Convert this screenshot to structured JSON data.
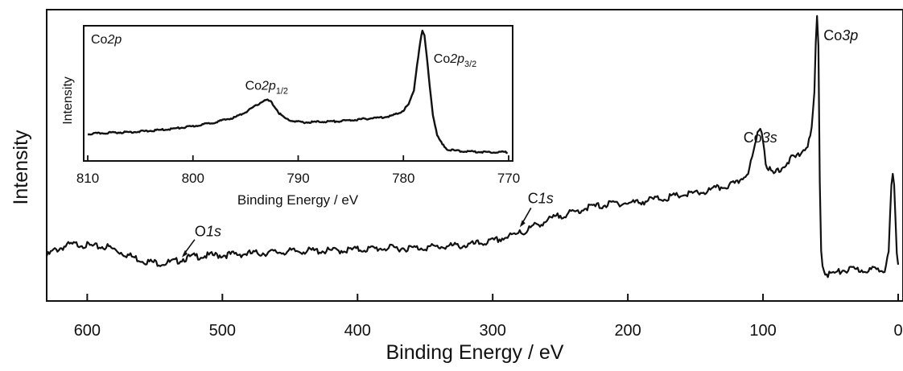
{
  "chart_data": [
    {
      "type": "line",
      "name": "",
      "xlabel": "Binding Energy / eV",
      "ylabel": "Intensity",
      "xlim": [
        630,
        0
      ],
      "ylim": [
        0,
        100
      ],
      "xticks": [
        600,
        500,
        400,
        300,
        200,
        100,
        0
      ],
      "y_tick_labels_shown": false,
      "grid": false,
      "series": [
        {
          "x": [
            630,
            625,
            615,
            605,
            595,
            585,
            575,
            565,
            555,
            545,
            535,
            530,
            520,
            500,
            480,
            460,
            440,
            420,
            400,
            380,
            360,
            340,
            320,
            300,
            290,
            282,
            280,
            278,
            270,
            260,
            250,
            240,
            230,
            220,
            210,
            200,
            190,
            180,
            170,
            160,
            150,
            140,
            130,
            120,
            115,
            110,
            106,
            104,
            102,
            100,
            98,
            96,
            94,
            92,
            90,
            85,
            80,
            75,
            72,
            70,
            68,
            66,
            64,
            62,
            61,
            60,
            59,
            58,
            57,
            56,
            54,
            52,
            50,
            45,
            40,
            35,
            30,
            25,
            20,
            15,
            10,
            7,
            5,
            4,
            3,
            2,
            1,
            0
          ],
          "y": [
            12,
            14,
            16,
            16.5,
            15.5,
            15.5,
            13.5,
            11.5,
            10,
            9.5,
            10,
            11,
            12,
            12.5,
            13,
            13.5,
            14,
            14,
            14.5,
            15,
            15,
            15.5,
            16,
            17.5,
            19,
            20,
            22,
            20.5,
            23,
            25,
            27,
            28,
            30,
            30.5,
            31.5,
            31.5,
            32,
            33,
            33.5,
            34.5,
            35,
            36,
            37.5,
            38.5,
            41,
            44,
            52,
            57,
            60,
            55,
            47,
            44,
            43,
            42,
            43.5,
            45,
            47.5,
            48.5,
            50,
            51,
            52.5,
            54,
            58,
            72,
            90,
            100,
            88,
            40,
            15,
            9,
            6,
            5.5,
            5.5,
            6,
            7,
            7,
            7,
            7,
            7,
            7,
            7.5,
            15,
            38,
            41,
            38,
            25,
            12,
            8
          ]
        }
      ],
      "annotations": [
        {
          "label": "O",
          "label_italic": "1s",
          "x": 530
        },
        {
          "label": "C",
          "label_italic": "1s",
          "x": 280
        },
        {
          "label": "Co",
          "label_italic": "3s",
          "x": 102
        },
        {
          "label": "Co",
          "label_italic": "3p",
          "x": 60
        }
      ]
    },
    {
      "type": "line",
      "name": "inset",
      "xlabel": "Binding Energy / eV",
      "ylabel": "Intensity",
      "xlim": [
        810,
        770
      ],
      "ylim": [
        0,
        100
      ],
      "xticks": [
        810,
        800,
        790,
        780,
        770
      ],
      "y_tick_labels_shown": false,
      "grid": false,
      "series": [
        {
          "x": [
            810,
            808,
            806,
            804,
            802,
            800,
            798,
            796,
            795,
            794,
            793.5,
            793,
            792.6,
            792.2,
            791.8,
            791.2,
            790.5,
            789.5,
            788,
            786,
            784,
            782,
            781,
            780.5,
            780,
            779.5,
            779,
            778.7,
            778.4,
            778.2,
            778,
            777.8,
            777.5,
            777.2,
            776.8,
            776.3,
            775.8,
            775,
            774,
            772,
            770
          ],
          "y": [
            20,
            21,
            21.5,
            22.5,
            24,
            26,
            29,
            33,
            37,
            42,
            45,
            46.5,
            45,
            41,
            36,
            32,
            30,
            29,
            29.5,
            30,
            31.5,
            33,
            34.5,
            36,
            38.5,
            43,
            54,
            74,
            92,
            100,
            96,
            82,
            58,
            35,
            19,
            12,
            8,
            7,
            6.5,
            6,
            6
          ]
        }
      ],
      "annotations": [
        {
          "label": "Co",
          "label_italic": "2p",
          "x": 793,
          "subscript": "1/2"
        },
        {
          "label": "Co",
          "label_italic": "2p",
          "x": 778.2,
          "subscript": "3/2"
        },
        {
          "label": "Co",
          "label_italic": "2p",
          "position": "top-left"
        }
      ]
    }
  ]
}
